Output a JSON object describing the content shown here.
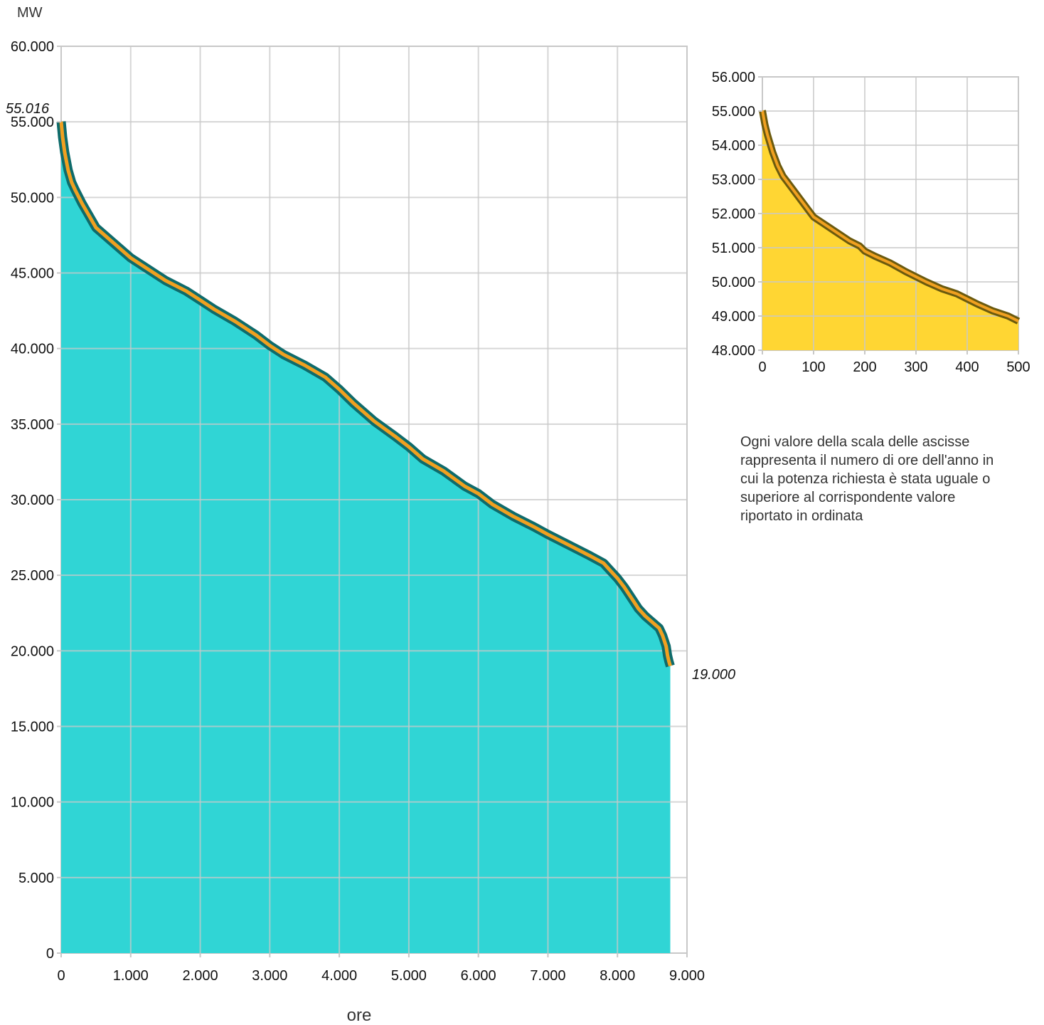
{
  "chart_data": [
    {
      "type": "area",
      "ylabel": "MW",
      "xlabel": "ore",
      "xlim": [
        0,
        9000
      ],
      "ylim": [
        0,
        60000
      ],
      "x_ticks": [
        0,
        1000,
        2000,
        3000,
        4000,
        5000,
        6000,
        7000,
        8000,
        9000
      ],
      "x_tick_labels": [
        "0",
        "1.000",
        "2.000",
        "3.000",
        "4.000",
        "5.000",
        "6.000",
        "7.000",
        "8.000",
        "9.000"
      ],
      "y_ticks": [
        0,
        5000,
        10000,
        15000,
        20000,
        25000,
        30000,
        35000,
        40000,
        45000,
        50000,
        55000,
        60000
      ],
      "y_tick_labels": [
        "0",
        "5.000",
        "10.000",
        "15.000",
        "20.000",
        "25.000",
        "30.000",
        "35.000",
        "40.000",
        "45.000",
        "50.000",
        "55.000",
        "60.000"
      ],
      "grid": true,
      "colors": {
        "fill": "#30d5d5",
        "line_outer": "#0e6b6b",
        "line_inner": "#f0a020",
        "grid": "#c8c8c8"
      },
      "annotations": [
        {
          "text": "55.016",
          "x": 0,
          "y": 55016
        },
        {
          "text": "19.000",
          "x": 8760,
          "y": 19000
        }
      ],
      "x": [
        0,
        20,
        50,
        100,
        150,
        200,
        300,
        400,
        500,
        600,
        800,
        1000,
        1200,
        1500,
        1800,
        2000,
        2200,
        2500,
        2800,
        3000,
        3200,
        3500,
        3800,
        4000,
        4200,
        4500,
        4800,
        5000,
        5200,
        5500,
        5800,
        6000,
        6200,
        6500,
        6800,
        7000,
        7300,
        7600,
        7800,
        7900,
        8000,
        8100,
        8200,
        8300,
        8400,
        8500,
        8600,
        8650,
        8700,
        8720,
        8740,
        8760
      ],
      "y": [
        55016,
        54000,
        53000,
        51800,
        51000,
        50500,
        49600,
        48800,
        48000,
        47600,
        46800,
        46000,
        45400,
        44500,
        43800,
        43200,
        42600,
        41800,
        40900,
        40200,
        39600,
        38900,
        38100,
        37300,
        36400,
        35200,
        34200,
        33500,
        32700,
        31900,
        30900,
        30400,
        29700,
        28900,
        28200,
        27700,
        27000,
        26300,
        25800,
        25300,
        24800,
        24200,
        23500,
        22800,
        22300,
        21900,
        21500,
        21000,
        20300,
        19700,
        19300,
        19000
      ]
    },
    {
      "type": "area",
      "xlim": [
        0,
        500
      ],
      "ylim": [
        48000,
        56000
      ],
      "x_ticks": [
        0,
        100,
        200,
        300,
        400,
        500
      ],
      "x_tick_labels": [
        "0",
        "100",
        "200",
        "300",
        "400",
        "500"
      ],
      "y_ticks": [
        48000,
        49000,
        50000,
        51000,
        52000,
        53000,
        54000,
        55000,
        56000
      ],
      "y_tick_labels": [
        "48.000",
        "49.000",
        "50.000",
        "51.000",
        "52.000",
        "53.000",
        "54.000",
        "55.000",
        "56.000"
      ],
      "grid": true,
      "colors": {
        "fill": "#ffd633",
        "line_outer": "#6b5a0e",
        "line_inner": "#f0a020",
        "grid": "#c8c8c8"
      },
      "x": [
        0,
        5,
        10,
        20,
        30,
        40,
        50,
        60,
        70,
        80,
        90,
        100,
        110,
        120,
        130,
        150,
        170,
        190,
        200,
        220,
        250,
        280,
        300,
        320,
        350,
        380,
        400,
        420,
        450,
        480,
        500
      ],
      "y": [
        55016,
        54600,
        54300,
        53800,
        53400,
        53100,
        52900,
        52700,
        52500,
        52300,
        52100,
        51900,
        51800,
        51700,
        51600,
        51400,
        51200,
        51050,
        50900,
        50750,
        50550,
        50300,
        50150,
        50000,
        49800,
        49650,
        49500,
        49350,
        49150,
        49000,
        48850
      ]
    }
  ],
  "note": {
    "lines": [
      "Ogni valore della scala delle ascisse",
      "rappresenta il numero di ore dell'anno in",
      "cui la potenza richiesta è stata uguale o",
      "superiore al corrispondente valore",
      "riportato in ordinata"
    ]
  }
}
